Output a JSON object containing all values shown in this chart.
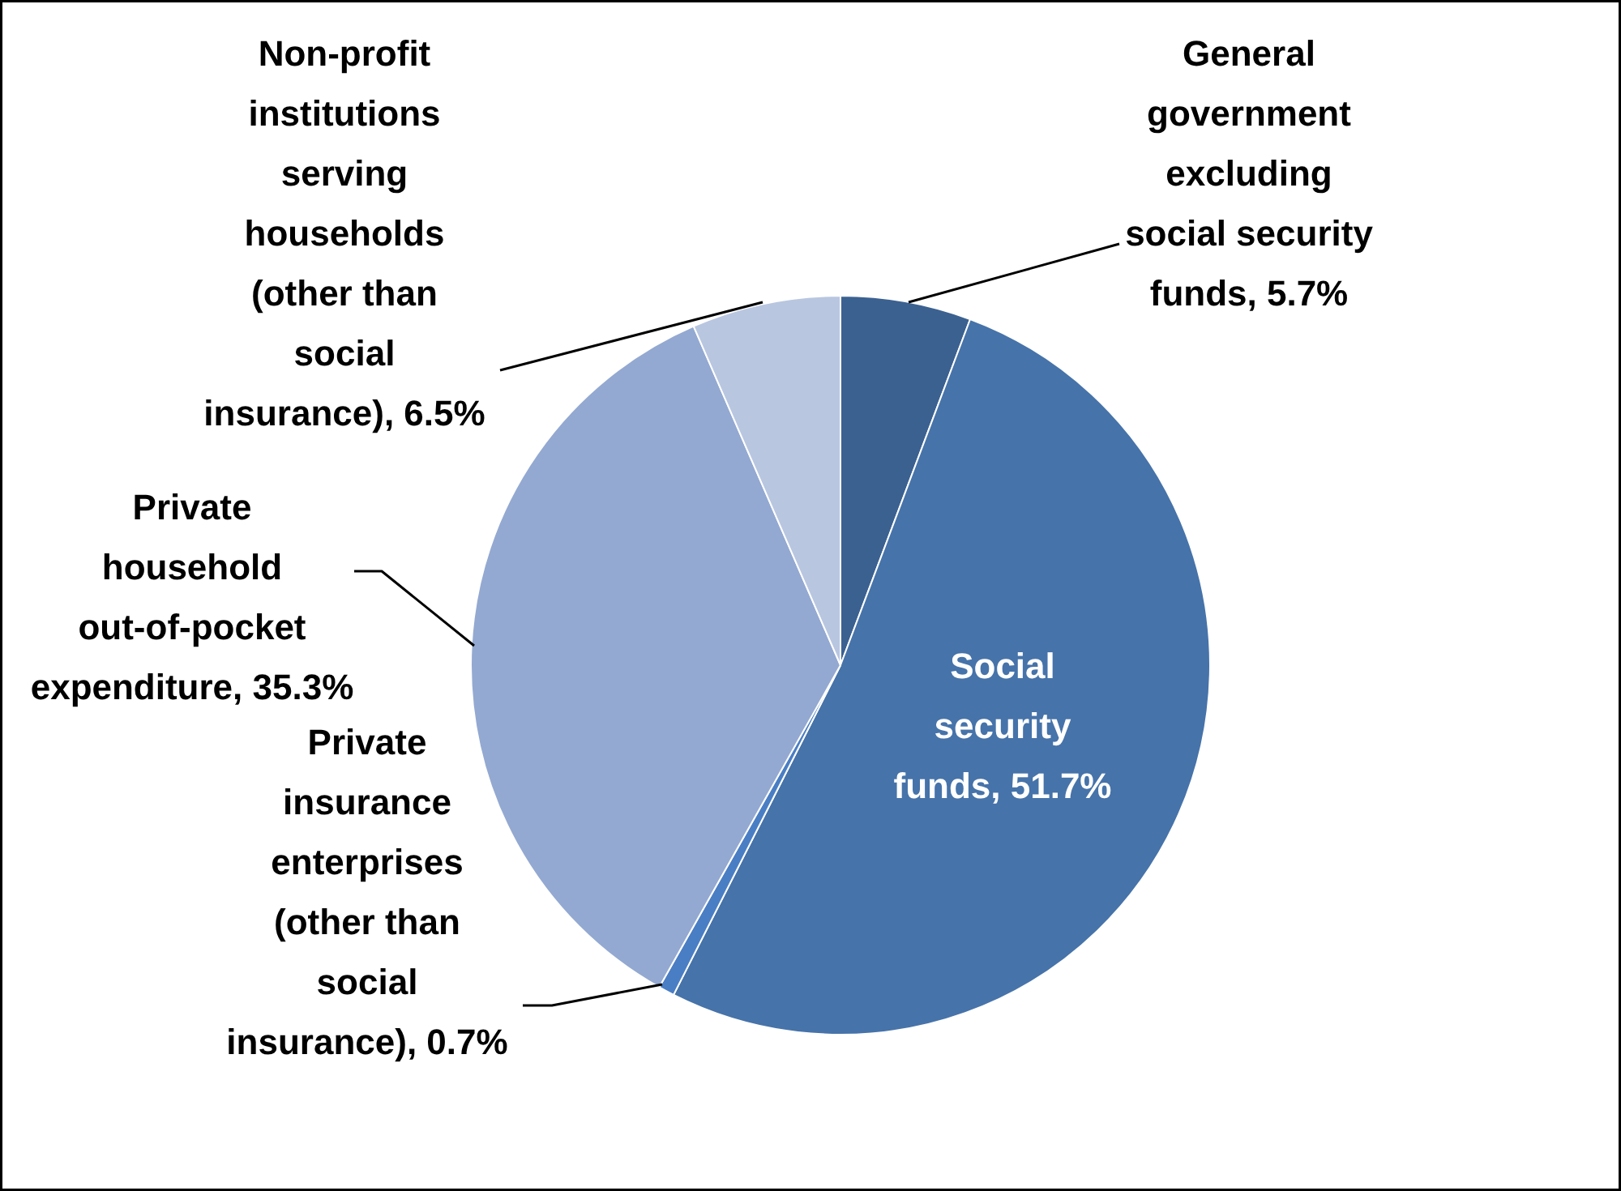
{
  "chart_data": {
    "type": "pie",
    "categories": [
      "General government excluding social security funds",
      "Social security funds",
      "Private insurance enterprises (other than social insurance)",
      "Private household out-of-pocket expenditure",
      "Non-profit institutions serving households (other than social insurance)"
    ],
    "values": [
      5.7,
      51.7,
      0.7,
      35.3,
      6.5
    ],
    "value_labels": [
      "5.7%",
      "51.7%",
      "0.7%",
      "35.3%",
      "6.5%"
    ],
    "colors": [
      "#3b6191",
      "#4673a9",
      "#4a7ec4",
      "#93a9d1",
      "#b8c6e0"
    ]
  }
}
